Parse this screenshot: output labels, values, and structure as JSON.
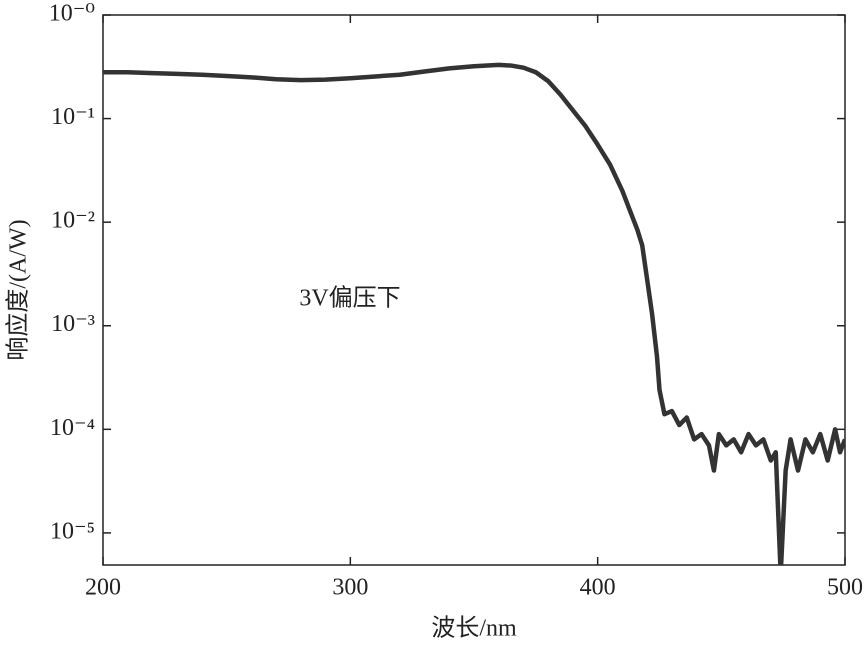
{
  "chart_data": {
    "type": "line",
    "annotation": "3V偏压下",
    "x_label": "波长/nm",
    "y_label": "响应度/(A/W)",
    "log_y": true,
    "xlim": [
      200,
      500
    ],
    "xticks": [
      200,
      300,
      400,
      500
    ],
    "ylim": [
      4.9e-06,
      1
    ],
    "yticks": [
      {
        "value": 1,
        "label": "10⁻⁰"
      },
      {
        "value": 0.1,
        "label": "10⁻¹"
      },
      {
        "value": 0.01,
        "label": "10⁻²"
      },
      {
        "value": 0.001,
        "label": "10⁻³"
      },
      {
        "value": 0.0001,
        "label": "10⁻⁴"
      },
      {
        "value": 1e-05,
        "label": "10⁻⁵"
      }
    ],
    "x": [
      200,
      210,
      220,
      230,
      240,
      250,
      260,
      270,
      280,
      290,
      300,
      310,
      320,
      330,
      340,
      350,
      360,
      365,
      370,
      375,
      380,
      385,
      390,
      395,
      400,
      405,
      410,
      413,
      416,
      418,
      420,
      422,
      424,
      425,
      427,
      430,
      433,
      436,
      439,
      442,
      445,
      447,
      449,
      452,
      455,
      458,
      461,
      464,
      467,
      470,
      472,
      474,
      476,
      478,
      481,
      484,
      487,
      490,
      493,
      496,
      498,
      500
    ],
    "series": [
      {
        "color": "#333333",
        "values": [
          0.28,
          0.28,
          0.275,
          0.27,
          0.265,
          0.258,
          0.25,
          0.24,
          0.235,
          0.238,
          0.245,
          0.255,
          0.265,
          0.285,
          0.305,
          0.32,
          0.33,
          0.325,
          0.31,
          0.28,
          0.23,
          0.17,
          0.12,
          0.085,
          0.056,
          0.036,
          0.02,
          0.013,
          0.0085,
          0.006,
          0.0028,
          0.0013,
          0.0005,
          0.00024,
          0.00014,
          0.00015,
          0.00011,
          0.00013,
          8e-05,
          9e-05,
          7e-05,
          4e-05,
          9e-05,
          7e-05,
          8e-05,
          6e-05,
          9e-05,
          7e-05,
          8e-05,
          5e-05,
          6e-05,
          4e-06,
          4e-05,
          8e-05,
          4e-05,
          8e-05,
          6e-05,
          9e-05,
          5e-05,
          0.0001,
          6e-05,
          8e-05
        ]
      }
    ]
  }
}
